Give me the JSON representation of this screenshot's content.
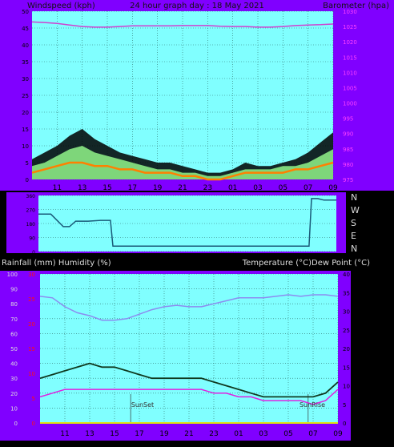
{
  "header": {
    "left_label": "Windspeed (kph)",
    "center_title": "24 hour graph day : 18 May 2021",
    "right_label": "Barometer (hpa)"
  },
  "middle": {
    "compass_labels": [
      "N",
      "W",
      "S",
      "E",
      "N"
    ]
  },
  "lower_header": {
    "left_label": "Rainfall (mm)  Humidity (%)",
    "right_label": "Temperature (°C)Dew Point (°C)"
  },
  "annotations": {
    "sunset": "SunSet",
    "sunrise": "SunRise"
  },
  "colors": {
    "frame": "#8000ff",
    "plot_bg": "#80ffff",
    "grid": "#2d6f6a",
    "wind_gust": "#000000",
    "wind_avg": "#7ed67a",
    "wind_orange": "#ff8000",
    "barometer": "#d040d0",
    "direction": "#1a5a78",
    "humidity": "#8c8cf0",
    "temperature": "#103a20",
    "dew_point": "#e020e0",
    "rain_axis": "#ff1010",
    "rain_line": "#e0e010"
  },
  "chart_data": [
    {
      "type": "line",
      "title": "24 hour graph day : 18 May 2021",
      "x_tick_labels": [
        "11",
        "13",
        "15",
        "17",
        "19",
        "21",
        "23",
        "01",
        "03",
        "05",
        "07",
        "09"
      ],
      "left_axis": {
        "label": "Windspeed (kph)",
        "range": [
          0,
          50
        ],
        "ticks": [
          0,
          5,
          10,
          15,
          20,
          25,
          30,
          35,
          40,
          45,
          50
        ]
      },
      "right_axis": {
        "label": "Barometer (hpa)",
        "range": [
          975,
          1030
        ],
        "ticks": [
          975,
          980,
          985,
          990,
          995,
          1000,
          1005,
          1010,
          1015,
          1020,
          1025,
          1030
        ]
      },
      "grid": true,
      "series": [
        {
          "name": "Barometer (hpa)",
          "axis": "right",
          "x": [
            0,
            1,
            2,
            3,
            4,
            5,
            6,
            7,
            8,
            9,
            10,
            11,
            12,
            13,
            14,
            15,
            16,
            17,
            18,
            19,
            20,
            21,
            22,
            23,
            24
          ],
          "values": [
            1026.5,
            1026.3,
            1026.0,
            1025.5,
            1025.0,
            1024.8,
            1024.8,
            1025.0,
            1025.2,
            1025.2,
            1025.2,
            1025.2,
            1025.3,
            1025.3,
            1025.3,
            1025.1,
            1025.0,
            1025.0,
            1024.8,
            1024.8,
            1025.0,
            1025.3,
            1025.5,
            1025.6,
            1025.8
          ]
        },
        {
          "name": "Wind gust",
          "axis": "left",
          "x": [
            0,
            1,
            2,
            3,
            4,
            5,
            6,
            7,
            8,
            9,
            10,
            11,
            12,
            13,
            14,
            15,
            16,
            17,
            18,
            19,
            20,
            21,
            22,
            23,
            24
          ],
          "values": [
            6,
            8,
            10,
            13,
            15,
            12,
            10,
            8,
            7,
            6,
            5,
            5,
            4,
            3,
            2,
            2,
            3,
            5,
            4,
            4,
            5,
            6,
            8,
            11,
            14
          ]
        },
        {
          "name": "Wind average",
          "axis": "left",
          "x": [
            0,
            1,
            2,
            3,
            4,
            5,
            6,
            7,
            8,
            9,
            10,
            11,
            12,
            13,
            14,
            15,
            16,
            17,
            18,
            19,
            20,
            21,
            22,
            23,
            24
          ],
          "values": [
            4,
            5,
            7,
            9,
            10,
            8,
            7,
            6,
            5,
            4,
            3,
            3,
            2,
            2,
            1,
            1,
            2,
            3,
            3,
            3,
            4,
            4,
            5,
            7,
            9
          ]
        },
        {
          "name": "Wind speed",
          "axis": "left",
          "x": [
            0,
            1,
            2,
            3,
            4,
            5,
            6,
            7,
            8,
            9,
            10,
            11,
            12,
            13,
            14,
            15,
            16,
            17,
            18,
            19,
            20,
            21,
            22,
            23,
            24
          ],
          "values": [
            2,
            3,
            4,
            5,
            5,
            4,
            4,
            3,
            3,
            2,
            2,
            2,
            1,
            1,
            0,
            0,
            1,
            2,
            2,
            2,
            2,
            3,
            3,
            4,
            5
          ]
        }
      ]
    },
    {
      "type": "line",
      "title": "",
      "y_labels": [
        "N",
        "W",
        "S",
        "E",
        "N"
      ],
      "left_axis": {
        "range": [
          0,
          360
        ],
        "ticks": [
          0,
          90,
          180,
          270,
          360
        ]
      },
      "series": [
        {
          "name": "Wind direction",
          "x": [
            0,
            1,
            2,
            2.5,
            3,
            4,
            5,
            5.8,
            6,
            7,
            8,
            9,
            10,
            11,
            12,
            13,
            14,
            15,
            16,
            17,
            18,
            19,
            20,
            21,
            21.8,
            22,
            22.5,
            23,
            24
          ],
          "values": [
            240,
            240,
            160,
            160,
            195,
            195,
            200,
            200,
            35,
            35,
            35,
            35,
            35,
            35,
            35,
            35,
            35,
            35,
            35,
            35,
            35,
            35,
            35,
            35,
            35,
            340,
            340,
            330,
            330
          ]
        }
      ]
    },
    {
      "type": "line",
      "title": "",
      "x_tick_labels": [
        "11",
        "13",
        "15",
        "17",
        "19",
        "21",
        "23",
        "01",
        "03",
        "05",
        "07",
        "09"
      ],
      "left_axis": {
        "label": "Rainfall (mm)  Humidity (%)",
        "range": [
          0,
          100
        ],
        "ticks": [
          0,
          10,
          20,
          30,
          40,
          50,
          60,
          70,
          80,
          90,
          100
        ]
      },
      "left_axis_2": {
        "range": [
          0,
          30
        ],
        "ticks": [
          0,
          5,
          10,
          15,
          20,
          25,
          30
        ]
      },
      "right_axis": {
        "label": "Temperature (°C)Dew Point (°C)",
        "range": [
          0,
          40
        ],
        "ticks": [
          0,
          5,
          10,
          15,
          20,
          25,
          30,
          35,
          40
        ]
      },
      "grid": true,
      "series": [
        {
          "name": "Humidity (%)",
          "axis": "left",
          "x": [
            0,
            1,
            2,
            3,
            4,
            5,
            6,
            7,
            8,
            9,
            10,
            11,
            12,
            13,
            14,
            15,
            16,
            17,
            18,
            19,
            20,
            21,
            22,
            23,
            24
          ],
          "values": [
            85,
            84,
            78,
            74,
            72,
            69,
            69,
            70,
            73,
            76,
            78,
            79,
            78,
            78,
            80,
            82,
            84,
            84,
            84,
            85,
            86,
            85,
            86,
            86,
            85
          ]
        },
        {
          "name": "Temperature (°C)",
          "axis": "right",
          "x": [
            0,
            1,
            2,
            3,
            4,
            5,
            6,
            7,
            8,
            9,
            10,
            11,
            12,
            13,
            14,
            15,
            16,
            17,
            18,
            19,
            20,
            21,
            22,
            23,
            24
          ],
          "values": [
            12,
            13,
            14,
            15,
            16,
            15,
            15,
            14,
            13,
            12,
            12,
            12,
            12,
            12,
            11,
            10,
            9,
            8,
            7,
            7,
            7,
            7,
            7,
            8,
            11
          ]
        },
        {
          "name": "Dew Point (°C)",
          "axis": "right",
          "x": [
            0,
            1,
            2,
            3,
            4,
            5,
            6,
            7,
            8,
            9,
            10,
            11,
            12,
            13,
            14,
            15,
            16,
            17,
            18,
            19,
            20,
            21,
            22,
            23,
            24
          ],
          "values": [
            7,
            8,
            9,
            9,
            9,
            9,
            9,
            9,
            9,
            9,
            9,
            9,
            9,
            9,
            8,
            8,
            7,
            7,
            6,
            6,
            6,
            6,
            5,
            6,
            9
          ]
        },
        {
          "name": "Rainfall (mm)",
          "axis": "left2",
          "x": [
            0,
            24
          ],
          "values": [
            0,
            0
          ]
        }
      ]
    }
  ]
}
